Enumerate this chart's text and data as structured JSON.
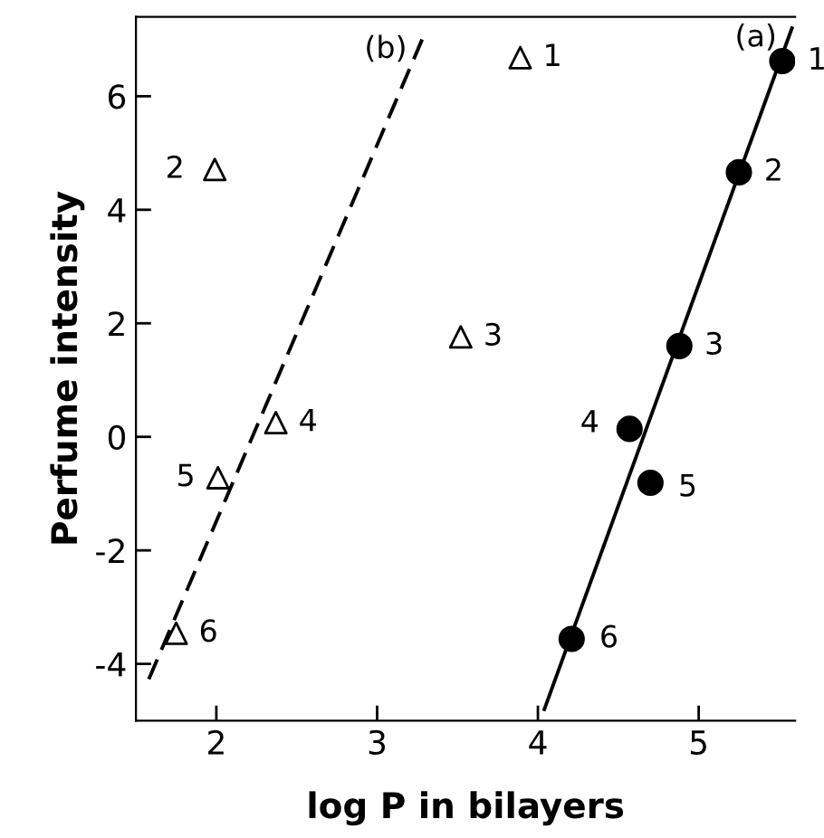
{
  "chart_data": {
    "type": "scatter",
    "xlabel": "log P in bilayers",
    "ylabel": "Perfume intensity",
    "xlim": [
      1.5,
      5.6
    ],
    "ylim": [
      -5,
      7.4
    ],
    "xticks": [
      2,
      3,
      4,
      5
    ],
    "yticks": [
      -4,
      -2,
      0,
      2,
      4,
      6
    ],
    "grid": false,
    "legend": false,
    "series": [
      {
        "marker": "triangle",
        "color": "#000000",
        "x": [
          3.89,
          1.99,
          3.52,
          2.37,
          2.01,
          1.75
        ],
        "values": [
          6.68,
          4.71,
          1.76,
          0.25,
          -0.72,
          -3.46
        ]
      },
      {
        "marker": "circle",
        "color": "#000000",
        "x": [
          5.52,
          5.25,
          4.88,
          4.57,
          4.7,
          4.21
        ],
        "values": [
          6.62,
          4.66,
          1.6,
          0.14,
          -0.81,
          -3.56
        ]
      },
      {
        "type": "line",
        "line_style": "solid",
        "color": "#000000",
        "x": [
          4.04,
          5.58
        ],
        "values": [
          -4.8,
          7.2
        ]
      },
      {
        "type": "line",
        "line_style": "dashed",
        "color": "#000000",
        "x": [
          1.58,
          3.28
        ],
        "values": [
          -4.27,
          7.0
        ]
      }
    ],
    "annotations": [
      {
        "text": "(a)",
        "x": 5.58,
        "y": 7.2
      },
      {
        "text": "(b)",
        "x": 3.28,
        "y": 7.0
      },
      {
        "text": "1",
        "x": 3.89,
        "y": 6.68
      },
      {
        "text": "2",
        "x": 1.99,
        "y": 4.71
      },
      {
        "text": "3",
        "x": 3.52,
        "y": 1.76
      },
      {
        "text": "4",
        "x": 2.37,
        "y": 0.25
      },
      {
        "text": "5",
        "x": 2.01,
        "y": -0.72
      },
      {
        "text": "6",
        "x": 1.75,
        "y": -3.46
      },
      {
        "text": "1",
        "x": 5.52,
        "y": 6.62
      },
      {
        "text": "2",
        "x": 5.25,
        "y": 4.66
      },
      {
        "text": "3",
        "x": 4.88,
        "y": 1.6
      },
      {
        "text": "4",
        "x": 4.57,
        "y": 0.14
      },
      {
        "text": "5",
        "x": 4.7,
        "y": -0.81
      },
      {
        "text": "6",
        "x": 4.21,
        "y": -3.56
      }
    ]
  }
}
